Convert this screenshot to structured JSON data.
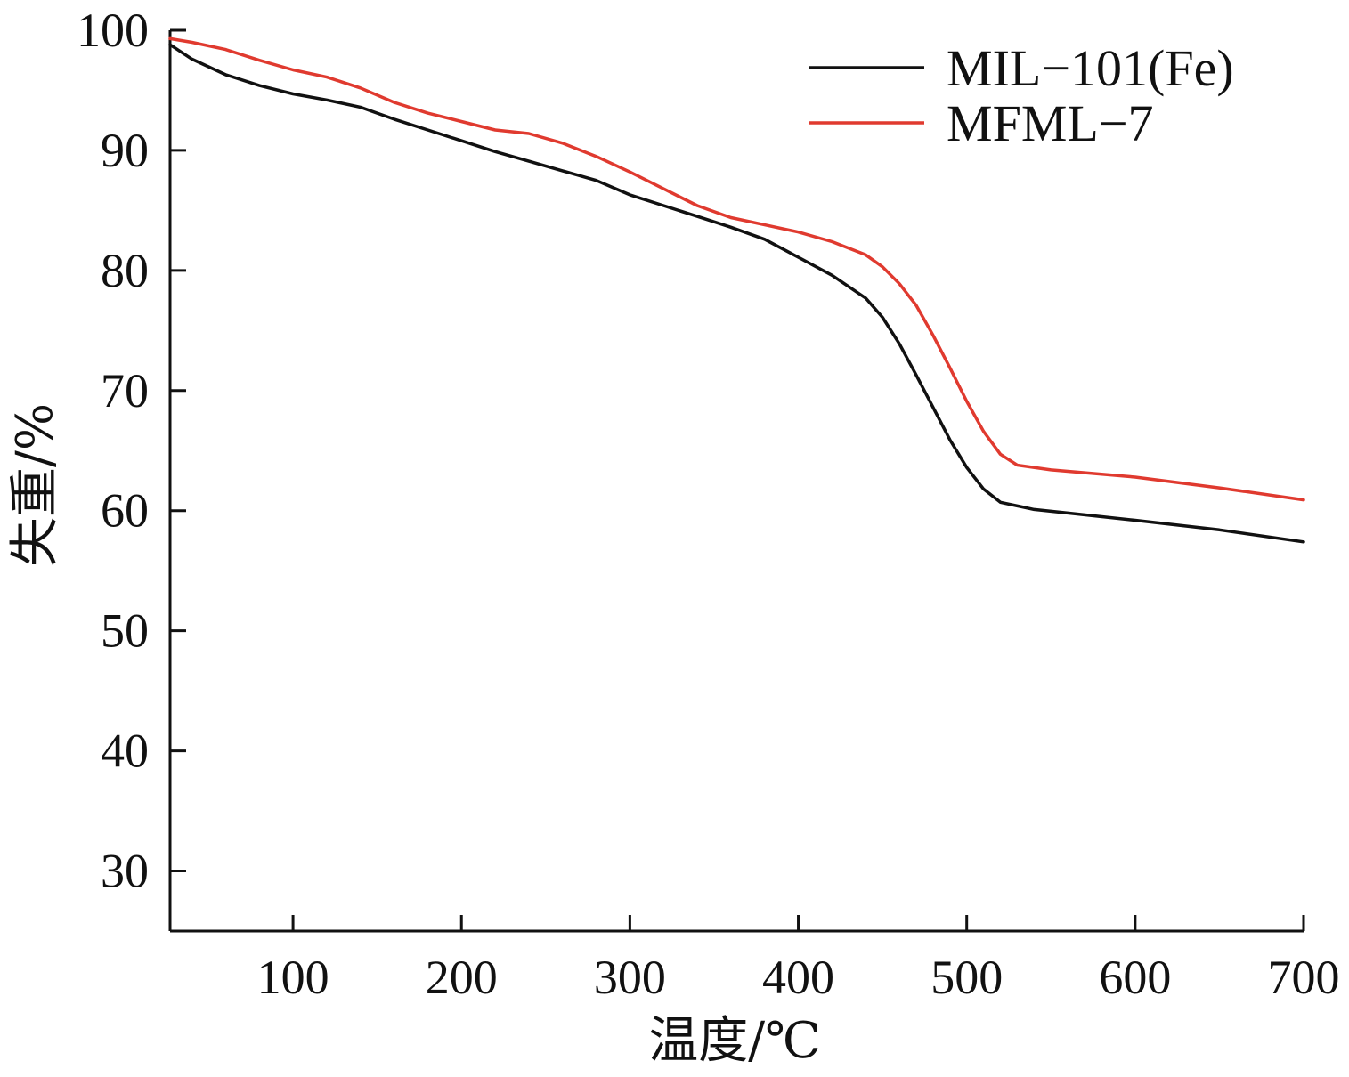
{
  "chart_data": {
    "type": "line",
    "title": "",
    "xlabel": "温度/℃",
    "ylabel": "失重/%",
    "xlim": [
      27,
      700
    ],
    "ylim": [
      25,
      100
    ],
    "x_ticks": [
      100,
      200,
      300,
      400,
      500,
      600,
      700
    ],
    "y_ticks": [
      30,
      40,
      50,
      60,
      70,
      80,
      90,
      100
    ],
    "grid": false,
    "legend_position": "top-right",
    "series": [
      {
        "name": "MIL−101(Fe)",
        "color": "#111111",
        "points": [
          [
            27,
            98.8
          ],
          [
            40,
            97.6
          ],
          [
            60,
            96.3
          ],
          [
            80,
            95.4
          ],
          [
            100,
            94.7
          ],
          [
            120,
            94.2
          ],
          [
            140,
            93.6
          ],
          [
            160,
            92.6
          ],
          [
            180,
            91.7
          ],
          [
            200,
            90.8
          ],
          [
            220,
            89.9
          ],
          [
            240,
            89.1
          ],
          [
            260,
            88.3
          ],
          [
            280,
            87.5
          ],
          [
            300,
            86.3
          ],
          [
            320,
            85.4
          ],
          [
            340,
            84.5
          ],
          [
            360,
            83.6
          ],
          [
            380,
            82.6
          ],
          [
            400,
            81.1
          ],
          [
            420,
            79.6
          ],
          [
            440,
            77.7
          ],
          [
            450,
            76.1
          ],
          [
            460,
            73.9
          ],
          [
            470,
            71.3
          ],
          [
            480,
            68.6
          ],
          [
            490,
            65.9
          ],
          [
            500,
            63.6
          ],
          [
            510,
            61.8
          ],
          [
            520,
            60.7
          ],
          [
            540,
            60.1
          ],
          [
            560,
            59.8
          ],
          [
            600,
            59.2
          ],
          [
            650,
            58.4
          ],
          [
            700,
            57.4
          ]
        ]
      },
      {
        "name": "MFML−7",
        "color": "#e03a2f",
        "points": [
          [
            27,
            99.3
          ],
          [
            40,
            99.0
          ],
          [
            60,
            98.4
          ],
          [
            80,
            97.5
          ],
          [
            100,
            96.7
          ],
          [
            120,
            96.1
          ],
          [
            140,
            95.2
          ],
          [
            160,
            94.0
          ],
          [
            180,
            93.1
          ],
          [
            200,
            92.4
          ],
          [
            220,
            91.7
          ],
          [
            240,
            91.4
          ],
          [
            260,
            90.6
          ],
          [
            280,
            89.5
          ],
          [
            300,
            88.2
          ],
          [
            320,
            86.8
          ],
          [
            340,
            85.4
          ],
          [
            360,
            84.4
          ],
          [
            380,
            83.8
          ],
          [
            400,
            83.2
          ],
          [
            420,
            82.4
          ],
          [
            440,
            81.3
          ],
          [
            450,
            80.3
          ],
          [
            460,
            78.9
          ],
          [
            470,
            77.1
          ],
          [
            480,
            74.6
          ],
          [
            490,
            71.9
          ],
          [
            500,
            69.1
          ],
          [
            510,
            66.6
          ],
          [
            520,
            64.7
          ],
          [
            530,
            63.8
          ],
          [
            550,
            63.4
          ],
          [
            600,
            62.8
          ],
          [
            650,
            61.9
          ],
          [
            700,
            60.9
          ]
        ]
      }
    ]
  }
}
